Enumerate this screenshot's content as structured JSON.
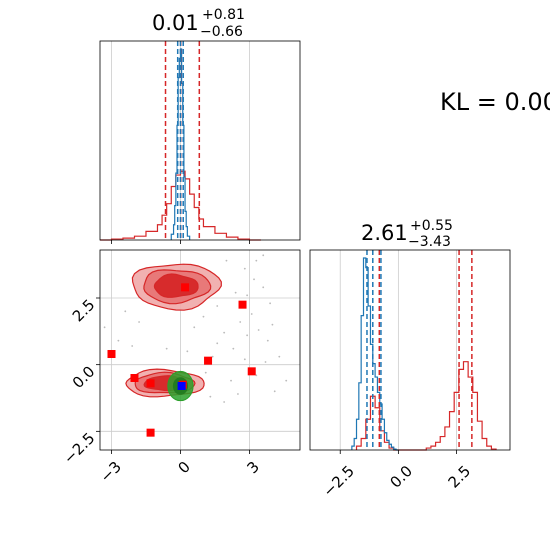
{
  "kl_label": "KL = 0.00",
  "colors": {
    "red": "#d62728",
    "blue": "#1f77b4",
    "fill_light": "#f0a8a8",
    "fill_mid": "#e77373",
    "fill_dark": "#d62728",
    "green": "#2ca02c",
    "marker_red": "#ff0000",
    "marker_blue": "#0000ff",
    "scatter": "#bbbbbb",
    "grid": "#cccccc"
  },
  "chart_data": [
    {
      "id": "marginal_param1",
      "type": "step-histogram",
      "title": {
        "value": "0.01",
        "plus": "+0.81",
        "minus": "−0.66"
      },
      "xlim": [
        -3.5,
        5.2
      ],
      "grid": true,
      "xticks": [
        -3,
        0,
        3
      ],
      "show_tick_labels": false,
      "red_series": {
        "color": "#d62728",
        "bin_edges": [
          -3.5,
          -3.0,
          -2.5,
          -2.0,
          -1.5,
          -1.0,
          -0.8,
          -0.6,
          -0.4,
          -0.2,
          0.0,
          0.2,
          0.4,
          0.6,
          0.8,
          1.0,
          1.5,
          2.0,
          2.5,
          3.0,
          3.5
        ],
        "values": [
          0,
          0.005,
          0.01,
          0.02,
          0.045,
          0.08,
          0.13,
          0.19,
          0.28,
          0.34,
          0.36,
          0.32,
          0.24,
          0.17,
          0.11,
          0.07,
          0.035,
          0.015,
          0.005,
          0
        ],
        "quantiles": [
          -0.65,
          0.01,
          0.82
        ]
      },
      "blue_series": {
        "color": "#1f77b4",
        "bin_edges": [
          -0.4,
          -0.3,
          -0.25,
          -0.2,
          -0.15,
          -0.1,
          -0.05,
          0.0,
          0.05,
          0.1,
          0.15,
          0.2,
          0.25,
          0.3,
          0.4
        ],
        "values": [
          0.03,
          0.08,
          0.18,
          0.35,
          0.6,
          0.85,
          0.95,
          1.0,
          0.82,
          0.6,
          0.33,
          0.15,
          0.07,
          0.02
        ],
        "quantiles": [
          -0.12,
          0.0,
          0.12
        ]
      }
    },
    {
      "id": "marginal_param2",
      "type": "step-histogram",
      "title": {
        "value": "2.61",
        "plus": "+0.55",
        "minus": "−3.43"
      },
      "xlim": [
        -3.8,
        4.8
      ],
      "grid": true,
      "xticks": [
        -2.5,
        0.0,
        2.5
      ],
      "xtick_labels": [
        "−2.5",
        "0.0",
        "2.5"
      ],
      "red_series": {
        "color": "#d62728",
        "bin_edges": [
          -1.8,
          -1.6,
          -1.4,
          -1.2,
          -1.0,
          -0.8,
          -0.6,
          -0.4,
          -0.2,
          0.0,
          0.2,
          0.4,
          0.6,
          0.8,
          1.0,
          1.2,
          1.4,
          1.6,
          1.8,
          2.0,
          2.2,
          2.4,
          2.6,
          2.8,
          3.0,
          3.2,
          3.4,
          3.6,
          3.8,
          4.0,
          4.2
        ],
        "values": [
          0.02,
          0.06,
          0.16,
          0.28,
          0.22,
          0.1,
          0.04,
          0.01,
          0,
          0,
          0,
          0,
          0,
          0,
          0,
          0.01,
          0.02,
          0.04,
          0.07,
          0.12,
          0.2,
          0.3,
          0.42,
          0.46,
          0.38,
          0.3,
          0.15,
          0.06,
          0.02,
          0.005
        ],
        "quantiles": [
          -0.82,
          2.61,
          3.16
        ]
      },
      "blue_series": {
        "color": "#1f77b4",
        "bin_edges": [
          -2.0,
          -1.9,
          -1.8,
          -1.7,
          -1.6,
          -1.5,
          -1.4,
          -1.3,
          -1.2,
          -1.1,
          -1.0,
          -0.9,
          -0.8,
          -0.7,
          -0.6,
          -0.5,
          -0.4,
          -0.3,
          -0.2,
          -0.1,
          0.0
        ],
        "values": [
          0.02,
          0.06,
          0.16,
          0.35,
          0.7,
          1.0,
          0.95,
          0.75,
          0.55,
          0.45,
          0.38,
          0.3,
          0.24,
          0.16,
          0.09,
          0.05,
          0.03,
          0.015,
          0.005,
          0
        ],
        "quantiles": [
          -1.35,
          -1.1,
          -0.75
        ]
      }
    },
    {
      "id": "joint_param1_param2",
      "type": "contour-scatter",
      "xlim": [
        -3.5,
        5.2
      ],
      "ylim": [
        -3.2,
        4.3
      ],
      "grid": true,
      "xticks": [
        -3,
        0,
        3
      ],
      "xtick_labels": [
        "−3",
        "0",
        "3"
      ],
      "yticks": [
        -2.5,
        0.0,
        2.5
      ],
      "ytick_labels": [
        "−2.5",
        "0.0",
        "2.5"
      ],
      "red_modes": [
        {
          "center": [
            -0.2,
            2.95
          ],
          "levels": [
            [
              1.9,
              0.85
            ],
            [
              1.45,
              0.62
            ],
            [
              0.95,
              0.42
            ]
          ]
        },
        {
          "center": [
            -0.7,
            -0.7
          ],
          "levels": [
            [
              1.7,
              0.5
            ],
            [
              1.3,
              0.38
            ],
            [
              0.85,
              0.27
            ]
          ]
        }
      ],
      "green_mode": {
        "center": [
          0.0,
          -0.8
        ],
        "rx": 0.55,
        "ry": 0.55
      },
      "red_markers": [
        [
          0.2,
          2.9
        ],
        [
          2.7,
          2.25
        ],
        [
          -3.0,
          0.4
        ],
        [
          1.2,
          0.15
        ],
        [
          -2.0,
          -0.5
        ],
        [
          -1.3,
          -0.7
        ],
        [
          3.1,
          -0.25
        ],
        [
          -1.3,
          -2.55
        ],
        [
          0.1,
          -0.75
        ]
      ],
      "blue_marker": [
        0.05,
        -0.8
      ],
      "scatter_points": [
        [
          2.8,
          3.6
        ],
        [
          3.2,
          3.2
        ],
        [
          3.6,
          2.9
        ],
        [
          2.4,
          2.7
        ],
        [
          3.9,
          2.3
        ],
        [
          3.1,
          1.9
        ],
        [
          2.6,
          1.6
        ],
        [
          4.0,
          1.5
        ],
        [
          3.4,
          1.3
        ],
        [
          2.9,
          1.1
        ],
        [
          1.9,
          1.2
        ],
        [
          1.6,
          0.8
        ],
        [
          2.3,
          0.6
        ],
        [
          1.4,
          0.3
        ],
        [
          2.8,
          0.2
        ],
        [
          3.8,
          0.9
        ],
        [
          4.3,
          0.3
        ],
        [
          3.3,
          -0.4
        ],
        [
          4.1,
          -1.0
        ],
        [
          2.2,
          -0.6
        ],
        [
          1.9,
          -1.4
        ],
        [
          -2.4,
          2.0
        ],
        [
          -1.8,
          1.6
        ],
        [
          -3.3,
          1.4
        ],
        [
          -2.7,
          0.9
        ],
        [
          -2.1,
          0.7
        ],
        [
          1.0,
          1.8
        ],
        [
          0.6,
          1.4
        ],
        [
          2.0,
          3.9
        ],
        [
          3.6,
          4.1
        ],
        [
          1.3,
          -1.2
        ],
        [
          1.1,
          -0.3
        ],
        [
          -0.6,
          0.6
        ],
        [
          0.3,
          0.5
        ],
        [
          2.5,
          -1.1
        ],
        [
          4.6,
          -0.6
        ],
        [
          2.9,
          2.6
        ],
        [
          3.3,
          3.9
        ],
        [
          1.6,
          2.2
        ],
        [
          3.7,
          0.1
        ]
      ]
    }
  ]
}
